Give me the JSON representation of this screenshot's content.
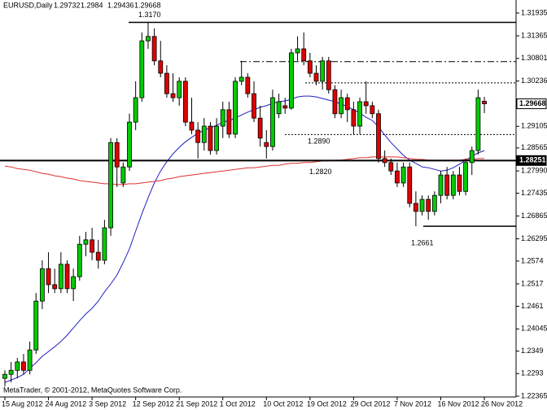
{
  "chart_data": {
    "type": "candlestick",
    "symbol": "EURUSD,Daily",
    "footer": "MetaTrader, © 2001-2012, MetaQuotes Software Corp.",
    "categories": [
      "15 Aug 2012",
      null,
      null,
      null,
      null,
      null,
      null,
      "24 Aug 2012",
      null,
      null,
      null,
      null,
      null,
      null,
      "3 Sep 2012",
      null,
      null,
      null,
      null,
      null,
      null,
      "12 Sep 2012",
      null,
      null,
      null,
      null,
      null,
      null,
      "21 Sep 2012",
      null,
      null,
      null,
      null,
      null,
      null,
      "1 Oct 2012",
      null,
      null,
      null,
      null,
      null,
      null,
      "10 Oct 2012",
      null,
      null,
      null,
      null,
      null,
      null,
      "19 Oct 2012",
      null,
      null,
      null,
      null,
      null,
      null,
      "29 Oct 2012",
      null,
      null,
      null,
      null,
      null,
      null,
      "7 Nov 2012",
      null,
      null,
      null,
      null,
      null,
      null,
      "16 Nov 2012",
      null,
      null,
      null,
      null,
      null,
      null,
      "26 Nov 2012"
    ],
    "open": [
      1.2281,
      1.2291,
      1.2301,
      1.2322,
      1.2301,
      1.2352,
      1.2474,
      1.2555,
      1.2515,
      1.2505,
      1.2566,
      1.2505,
      1.2535,
      1.2616,
      1.2627,
      1.2596,
      1.2576,
      1.2657,
      1.287,
      1.2769,
      1.2809,
      1.2921,
      1.2982,
      1.3124,
      1.3135,
      1.3074,
      1.3043,
      1.2992,
      1.2982,
      1.3023,
      1.2921,
      1.2901,
      1.287,
      1.2911,
      1.285,
      1.2911,
      1.2952,
      1.2891,
      1.3023,
      1.3033,
      1.2992,
      1.2931,
      1.287,
      1.286,
      1.2942,
      1.2962,
      1.2956,
      1.3094,
      1.3104,
      1.3074,
      1.3043,
      1.3023,
      1.3074,
      1.3002,
      1.2942,
      1.2982,
      1.2952,
      1.2911,
      1.2972,
      1.2962,
      1.2942,
      1.283,
      1.282,
      1.2799,
      1.2769,
      1.2809,
      1.2718,
      1.2698,
      1.2728,
      1.2698,
      1.2738,
      1.2789,
      1.2738,
      1.2789,
      1.2748,
      1.282,
      1.285,
      1.29732
    ],
    "high": [
      1.2301,
      1.2322,
      1.2332,
      1.2342,
      1.2373,
      1.2494,
      1.2576,
      1.2596,
      1.2555,
      1.2596,
      1.2576,
      1.2555,
      1.2637,
      1.2647,
      1.2657,
      1.2627,
      1.2677,
      1.2881,
      1.2881,
      1.282,
      1.2942,
      1.3023,
      1.3145,
      1.317,
      1.3155,
      1.3124,
      1.3063,
      1.3043,
      1.3033,
      1.3033,
      1.2982,
      1.2921,
      1.2931,
      1.2921,
      1.2931,
      1.2972,
      1.2972,
      1.3033,
      1.3074,
      1.3043,
      1.3023,
      1.2962,
      1.2901,
      1.3002,
      1.2992,
      1.2982,
      1.3104,
      1.3135,
      1.3145,
      1.3094,
      1.3063,
      1.3084,
      1.3084,
      1.3013,
      1.3002,
      1.2992,
      1.2972,
      1.2982,
      1.3023,
      1.2972,
      1.2952,
      1.285,
      1.283,
      1.282,
      1.282,
      1.282,
      1.2748,
      1.2738,
      1.2738,
      1.2748,
      1.2799,
      1.2809,
      1.2799,
      1.2809,
      1.283,
      1.286,
      1.3002,
      1.2984
    ],
    "low": [
      1.2261,
      1.2271,
      1.2281,
      1.2291,
      1.2291,
      1.2342,
      1.2454,
      1.2494,
      1.2494,
      1.2494,
      1.2494,
      1.2474,
      1.2525,
      1.2586,
      1.2576,
      1.2555,
      1.2566,
      1.2637,
      1.2759,
      1.2759,
      1.2799,
      1.2901,
      1.2972,
      1.3104,
      1.3063,
      1.3033,
      1.2982,
      1.2972,
      1.2962,
      1.2911,
      1.2891,
      1.283,
      1.285,
      1.284,
      1.284,
      1.2881,
      1.2881,
      1.2881,
      1.3013,
      1.2982,
      1.2921,
      1.286,
      1.283,
      1.285,
      1.2931,
      1.2942,
      1.2952,
      1.3074,
      1.3063,
      1.3033,
      1.3013,
      1.3002,
      1.2992,
      1.2931,
      1.2931,
      1.2921,
      1.2891,
      1.2891,
      1.2942,
      1.2931,
      1.282,
      1.2809,
      1.2789,
      1.2759,
      1.2759,
      1.2708,
      1.2661,
      1.2688,
      1.2677,
      1.2688,
      1.2718,
      1.2728,
      1.2728,
      1.2738,
      1.2738,
      1.2789,
      1.284,
      1.29436
    ],
    "close": [
      1.2291,
      1.2301,
      1.2322,
      1.2301,
      1.2352,
      1.2474,
      1.2555,
      1.2515,
      1.2505,
      1.2566,
      1.2505,
      1.2535,
      1.2616,
      1.2627,
      1.2596,
      1.2576,
      1.2657,
      1.287,
      1.2809,
      1.2809,
      1.2921,
      1.2982,
      1.3124,
      1.3135,
      1.3074,
      1.3043,
      1.2992,
      1.2982,
      1.3023,
      1.2921,
      1.2901,
      1.287,
      1.2911,
      1.285,
      1.2911,
      1.2952,
      1.2891,
      1.3023,
      1.3033,
      1.2992,
      1.2931,
      1.2881,
      1.286,
      1.2982,
      1.2972,
      1.2956,
      1.3094,
      1.3104,
      1.3074,
      1.3043,
      1.3023,
      1.3074,
      1.3002,
      1.2942,
      1.2982,
      1.2952,
      1.2911,
      1.2972,
      1.2962,
      1.2942,
      1.283,
      1.282,
      1.2799,
      1.2769,
      1.2809,
      1.2718,
      1.2698,
      1.2728,
      1.2698,
      1.2738,
      1.2789,
      1.2738,
      1.2789,
      1.2748,
      1.282,
      1.285,
      1.2982,
      1.29668
    ],
    "colors": {
      "up": "#00cc00",
      "down": "#e00000",
      "wick": "#000000"
    },
    "moving_averages": [
      {
        "color": "#2020c0",
        "values": [
          1.2271,
          1.2277,
          1.2283,
          1.2291,
          1.2306,
          1.232,
          1.2336,
          1.2348,
          1.236,
          1.2373,
          1.2389,
          1.2407,
          1.2425,
          1.2442,
          1.2456,
          1.2474,
          1.2497,
          1.2517,
          1.2539,
          1.257,
          1.2604,
          1.2649,
          1.2692,
          1.2732,
          1.2769,
          1.2799,
          1.2822,
          1.2842,
          1.2858,
          1.2872,
          1.2883,
          1.2893,
          1.2901,
          1.2907,
          1.2913,
          1.2921,
          1.2925,
          1.2931,
          1.2939,
          1.2946,
          1.2952,
          1.2958,
          1.2962,
          1.2968,
          1.2972,
          1.2974,
          1.2978,
          1.2984,
          1.2986,
          1.2986,
          1.2984,
          1.298,
          1.2976,
          1.2972,
          1.2966,
          1.296,
          1.2952,
          1.2944,
          1.2933,
          1.2925,
          1.2909,
          1.2889,
          1.287,
          1.2854,
          1.2838,
          1.2826,
          1.2818,
          1.2809,
          1.2807,
          1.2803,
          1.2799,
          1.2801,
          1.2807,
          1.2816,
          1.2826,
          1.2836,
          1.2844,
          1.285
        ]
      },
      {
        "color": "#e03030",
        "values": [
          1.2811,
          1.2809,
          1.2805,
          1.2803,
          1.2801,
          1.2797,
          1.2793,
          1.2791,
          1.2787,
          1.2785,
          1.2781,
          1.2779,
          1.2775,
          1.2773,
          1.2771,
          1.2769,
          1.2767,
          1.2767,
          1.2765,
          1.2765,
          1.2767,
          1.2767,
          1.2769,
          1.2771,
          1.2773,
          1.2775,
          1.2779,
          1.2781,
          1.2785,
          1.2787,
          1.2789,
          1.2791,
          1.2793,
          1.2795,
          1.2797,
          1.2799,
          1.2801,
          1.2803,
          1.2805,
          1.2807,
          1.2807,
          1.2809,
          1.2811,
          1.2813,
          1.2813,
          1.2816,
          1.2818,
          1.2818,
          1.282,
          1.282,
          1.2822,
          1.2824,
          1.2824,
          1.2826,
          1.2826,
          1.2828,
          1.283,
          1.2832,
          1.2832,
          1.2834,
          1.2834,
          1.2834,
          1.2834,
          1.2834,
          1.2832,
          1.283,
          1.2828,
          1.2828,
          1.2826,
          1.2826,
          1.2826,
          1.2826,
          1.2826,
          1.2826,
          1.2828,
          1.2828,
          1.283,
          1.283
        ]
      }
    ],
    "hline": 1.28251,
    "levels": [
      1.3072,
      1.3019
    ],
    "annotations": [
      {
        "value": 1.317,
        "label": "1.3170"
      },
      {
        "value": 1.289,
        "label": "1.2890"
      },
      {
        "value": 1.282,
        "label": "1.2820"
      },
      {
        "value": 1.2661,
        "label": "1.2661"
      }
    ],
    "ylim": [
      1.22345,
      1.3226
    ],
    "yticks": [
      1.31935,
      1.31365,
      1.30801,
      1.30236,
      1.29105,
      1.28565,
      1.2799,
      {
        "value": 1.2799,
        "label": "1.27990"
      },
      1.27435,
      1.26865,
      1.26295,
      1.2574,
      1.2517,
      1.2461,
      1.24045,
      1.2349,
      1.2293,
      1.22365
    ]
  }
}
